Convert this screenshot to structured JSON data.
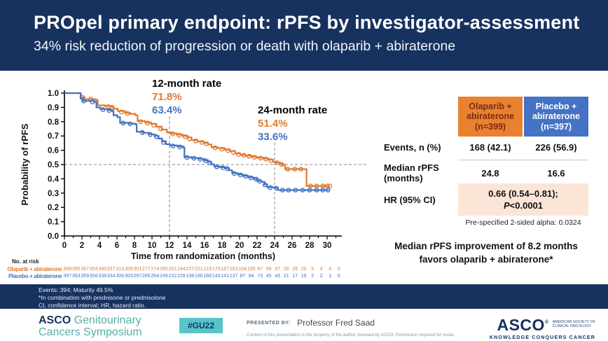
{
  "slide": {
    "title": "PROpel primary endpoint: rPFS by investigator-assessment",
    "subtitle": "34% risk reduction of progression or death with olaparib + abiraterone"
  },
  "chart_data": {
    "type": "line",
    "subtype": "kaplan-meier-step",
    "xlabel": "Time from randomization (months)",
    "ylabel": "Probability of rPFS",
    "xlim": [
      0,
      31
    ],
    "ylim": [
      0.0,
      1.0
    ],
    "x_ticks": [
      0,
      2,
      4,
      6,
      8,
      10,
      12,
      14,
      16,
      18,
      20,
      22,
      24,
      26,
      28,
      30
    ],
    "y_ticks": [
      1.0,
      0.9,
      0.8,
      0.7,
      0.6,
      0.5,
      0.4,
      0.3,
      0.2,
      0.1,
      0.0
    ],
    "grid": false,
    "reference_lines": {
      "vertical_at_months": [
        12,
        24
      ],
      "horizontal_at_probability": 0.5
    },
    "annotations": [
      {
        "label": "12-month rate",
        "olaparib": "71.8%",
        "placebo": "63.4%"
      },
      {
        "label": "24-month rate",
        "olaparib": "51.4%",
        "placebo": "33.6%"
      }
    ],
    "series": [
      {
        "name": "Olaparib + abiraterone",
        "color": "#e07b30",
        "steps": [
          [
            0,
            1
          ],
          [
            1.75,
            1
          ],
          [
            1.85,
            0.972
          ],
          [
            2.3,
            0.958
          ],
          [
            3.6,
            0.952
          ],
          [
            3.8,
            0.915
          ],
          [
            4.6,
            0.91
          ],
          [
            5.3,
            0.905
          ],
          [
            5.6,
            0.89
          ],
          [
            6.1,
            0.875
          ],
          [
            6.9,
            0.862
          ],
          [
            7.5,
            0.855
          ],
          [
            8.1,
            0.845
          ],
          [
            8.35,
            0.805
          ],
          [
            9.2,
            0.795
          ],
          [
            9.9,
            0.785
          ],
          [
            10.5,
            0.765
          ],
          [
            11.1,
            0.745
          ],
          [
            11.7,
            0.725
          ],
          [
            12.1,
            0.718
          ],
          [
            12.8,
            0.71
          ],
          [
            13.5,
            0.7
          ],
          [
            14.1,
            0.69
          ],
          [
            14.5,
            0.672
          ],
          [
            15.2,
            0.662
          ],
          [
            15.9,
            0.652
          ],
          [
            16.4,
            0.64
          ],
          [
            16.8,
            0.622
          ],
          [
            17.5,
            0.615
          ],
          [
            18.3,
            0.605
          ],
          [
            18.9,
            0.595
          ],
          [
            19.5,
            0.578
          ],
          [
            20.1,
            0.568
          ],
          [
            20.7,
            0.562
          ],
          [
            21.4,
            0.555
          ],
          [
            22.0,
            0.548
          ],
          [
            22.7,
            0.542
          ],
          [
            23.3,
            0.535
          ],
          [
            23.8,
            0.52
          ],
          [
            24.1,
            0.514
          ],
          [
            24.6,
            0.508
          ],
          [
            24.9,
            0.498
          ],
          [
            25.2,
            0.468
          ],
          [
            27.5,
            0.468
          ],
          [
            27.65,
            0.35
          ],
          [
            30.3,
            0.35
          ]
        ],
        "censors": [
          [
            2.0,
            0.972
          ],
          [
            3.0,
            0.958
          ],
          [
            5.0,
            0.905
          ],
          [
            5.45,
            0.9
          ],
          [
            6.5,
            0.868
          ],
          [
            7.2,
            0.858
          ],
          [
            8.7,
            0.8
          ],
          [
            9.5,
            0.79
          ],
          [
            10.2,
            0.775
          ],
          [
            11.0,
            0.75
          ],
          [
            12.35,
            0.715
          ],
          [
            13.1,
            0.705
          ],
          [
            13.8,
            0.695
          ],
          [
            14.3,
            0.68
          ],
          [
            15.0,
            0.665
          ],
          [
            15.7,
            0.655
          ],
          [
            16.2,
            0.645
          ],
          [
            17.2,
            0.617
          ],
          [
            18.0,
            0.608
          ],
          [
            18.7,
            0.598
          ],
          [
            19.3,
            0.585
          ],
          [
            19.9,
            0.571
          ],
          [
            20.5,
            0.564
          ],
          [
            21.1,
            0.558
          ],
          [
            21.7,
            0.551
          ],
          [
            22.4,
            0.545
          ],
          [
            23.0,
            0.538
          ],
          [
            23.6,
            0.527
          ],
          [
            24.3,
            0.512
          ],
          [
            24.8,
            0.5
          ],
          [
            25.5,
            0.468
          ],
          [
            26.3,
            0.468
          ],
          [
            27.0,
            0.468
          ],
          [
            28.1,
            0.35
          ],
          [
            28.8,
            0.35
          ],
          [
            29.5,
            0.35
          ],
          [
            30.0,
            0.35
          ],
          [
            30.3,
            0.35
          ]
        ]
      },
      {
        "name": "Placebo + abiraterone",
        "color": "#4472c4",
        "steps": [
          [
            0,
            1
          ],
          [
            1.75,
            1
          ],
          [
            1.85,
            0.962
          ],
          [
            2.1,
            0.945
          ],
          [
            3.4,
            0.938
          ],
          [
            3.65,
            0.9
          ],
          [
            4.1,
            0.888
          ],
          [
            5.0,
            0.882
          ],
          [
            5.45,
            0.875
          ],
          [
            5.6,
            0.845
          ],
          [
            6.05,
            0.832
          ],
          [
            6.35,
            0.792
          ],
          [
            7.3,
            0.787
          ],
          [
            8.05,
            0.782
          ],
          [
            8.25,
            0.73
          ],
          [
            9.0,
            0.722
          ],
          [
            9.7,
            0.712
          ],
          [
            10.3,
            0.7
          ],
          [
            10.75,
            0.682
          ],
          [
            11.15,
            0.662
          ],
          [
            11.6,
            0.642
          ],
          [
            12.05,
            0.634
          ],
          [
            12.9,
            0.627
          ],
          [
            13.55,
            0.62
          ],
          [
            13.7,
            0.552
          ],
          [
            14.5,
            0.546
          ],
          [
            15.3,
            0.54
          ],
          [
            15.9,
            0.53
          ],
          [
            16.4,
            0.52
          ],
          [
            16.75,
            0.502
          ],
          [
            17.1,
            0.487
          ],
          [
            17.8,
            0.481
          ],
          [
            18.45,
            0.474
          ],
          [
            18.8,
            0.46
          ],
          [
            19.15,
            0.44
          ],
          [
            19.8,
            0.431
          ],
          [
            20.4,
            0.421
          ],
          [
            21.0,
            0.411
          ],
          [
            21.6,
            0.401
          ],
          [
            22.0,
            0.386
          ],
          [
            22.5,
            0.379
          ],
          [
            22.85,
            0.361
          ],
          [
            23.15,
            0.341
          ],
          [
            24.05,
            0.336
          ],
          [
            24.4,
            0.321
          ],
          [
            30.2,
            0.321
          ]
        ],
        "censors": [
          [
            2.2,
            0.945
          ],
          [
            3.2,
            0.938
          ],
          [
            4.4,
            0.885
          ],
          [
            5.1,
            0.878
          ],
          [
            6.7,
            0.79
          ],
          [
            7.5,
            0.785
          ],
          [
            8.9,
            0.724
          ],
          [
            9.8,
            0.71
          ],
          [
            10.5,
            0.694
          ],
          [
            11.3,
            0.655
          ],
          [
            12.4,
            0.63
          ],
          [
            13.2,
            0.623
          ],
          [
            14.0,
            0.549
          ],
          [
            14.8,
            0.544
          ],
          [
            15.5,
            0.537
          ],
          [
            16.1,
            0.527
          ],
          [
            16.6,
            0.512
          ],
          [
            17.4,
            0.484
          ],
          [
            18.1,
            0.478
          ],
          [
            18.6,
            0.471
          ],
          [
            19.4,
            0.437
          ],
          [
            20.1,
            0.427
          ],
          [
            20.7,
            0.417
          ],
          [
            21.3,
            0.407
          ],
          [
            21.9,
            0.397
          ],
          [
            22.3,
            0.383
          ],
          [
            22.9,
            0.358
          ],
          [
            23.5,
            0.338
          ],
          [
            24.2,
            0.334
          ],
          [
            24.9,
            0.321
          ],
          [
            25.6,
            0.321
          ],
          [
            26.4,
            0.321
          ],
          [
            27.2,
            0.321
          ],
          [
            28.0,
            0.321
          ],
          [
            28.8,
            0.321
          ],
          [
            29.5,
            0.321
          ],
          [
            30.1,
            0.321
          ]
        ]
      }
    ]
  },
  "at_risk": {
    "title": "No. at risk",
    "rows": [
      {
        "name": "Olaparib + abiraterone",
        "color": "#e07b30",
        "counts": [
          399,
          395,
          367,
          354,
          340,
          337,
          313,
          309,
          301,
          277,
          274,
          265,
          251,
          244,
          227,
          221,
          219,
          170,
          167,
          163,
          104,
          100,
          87,
          59,
          57,
          28,
          26,
          25,
          5,
          4,
          4,
          0
        ]
      },
      {
        "name": "Placebo + abiraterone",
        "color": "#4472c4",
        "counts": [
          397,
          393,
          359,
          356,
          338,
          334,
          306,
          303,
          297,
          266,
          264,
          249,
          232,
          228,
          198,
          190,
          186,
          143,
          141,
          137,
          87,
          84,
          73,
          45,
          43,
          21,
          17,
          16,
          2,
          2,
          1,
          0
        ]
      }
    ]
  },
  "results_table": {
    "columns": [
      {
        "label": "Olaparib + abiraterone (n=399)",
        "bg": "#e8822f",
        "fg": "#7b2a12"
      },
      {
        "label": "Placebo + abiraterone (n=397)",
        "bg": "#4472c4",
        "fg": "#ffffff"
      }
    ],
    "rows": [
      {
        "label": "Events, n (%)",
        "olaparib": "168 (42.1)",
        "placebo": "226 (56.9)"
      },
      {
        "label": "Median rPFS (months)",
        "olaparib": "24.8",
        "placebo": "16.6"
      }
    ],
    "hr_row": {
      "label": "HR (95% CI)",
      "line1": "0.66 (0.54–0.81);",
      "p_italic": "P",
      "p_value": "<0.0001"
    },
    "alpha_note": "Pre-specified 2-sided alpha: 0.0324",
    "conclusion_line1": "Median rPFS improvement of 8.2 months",
    "conclusion_line2": "favors olaparib + abiraterone*"
  },
  "footnotes": {
    "line1": "Events: 394; Maturity 49.5%",
    "line2": "*In combination with prednisone or prednisolone",
    "line3": "CI, confidence interval; HR, hazard ratio."
  },
  "footer": {
    "congress_bold": "ASCO",
    "congress_rest": "Genitourinary",
    "congress_line2": "Cancers Symposium",
    "hashtag": "#GU22",
    "presented_by_label": "PRESENTED BY:",
    "presenter": "Professor Fred Saad",
    "disclaimer": "Content of this presentation is the property of the author, licensed by ASCO. Permission required for reuse.",
    "asco_word": "ASCO",
    "asco_reg": "®",
    "asco_sub1": "AMERICAN SOCIETY OF",
    "asco_sub2": "CLINICAL ONCOLOGY",
    "asco_tagline": "KNOWLEDGE CONQUERS CANCER"
  },
  "colors": {
    "header_navy": "#17325f",
    "olaparib_orange": "#e07b30",
    "placebo_blue": "#4472c4",
    "hr_cell_peach": "#fbe5d6",
    "badge_teal": "#57c4cb",
    "congress_teal": "#53afa8",
    "dash_gray": "#9aa0a6"
  }
}
